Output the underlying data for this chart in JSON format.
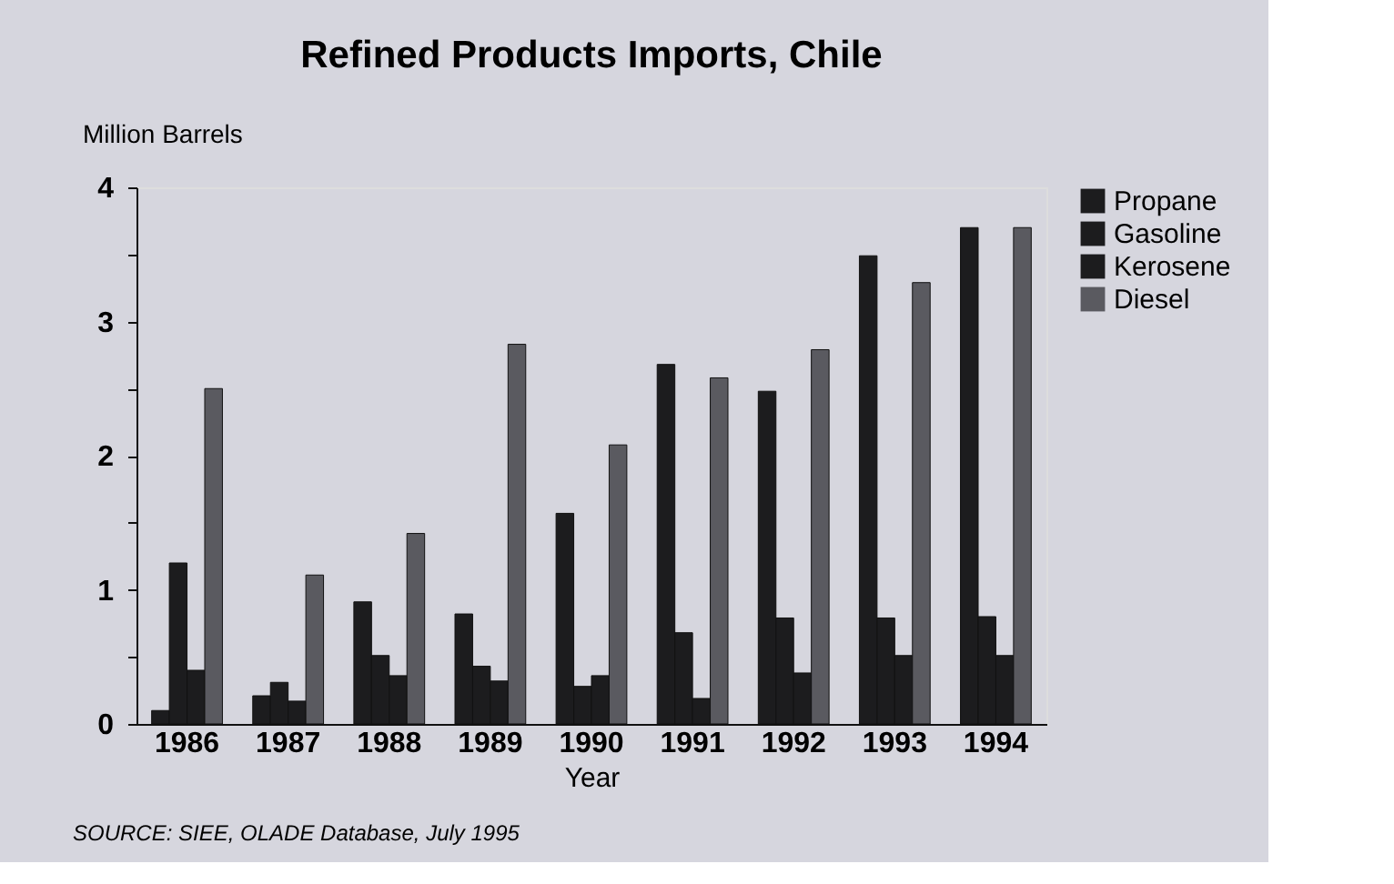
{
  "chart_data": {
    "type": "bar",
    "title": "Refined Products Imports, Chile",
    "ylabel": "Million Barrels",
    "xlabel": "Year",
    "categories": [
      "1986",
      "1987",
      "1988",
      "1989",
      "1990",
      "1991",
      "1992",
      "1993",
      "1994"
    ],
    "series": [
      {
        "name": "Propane",
        "color": "#1c1c1e",
        "values": [
          0.1,
          0.21,
          0.91,
          0.82,
          1.57,
          2.68,
          2.48,
          3.49,
          3.7
        ]
      },
      {
        "name": "Gasoline",
        "color": "#1c1c1e",
        "values": [
          1.2,
          0.31,
          0.51,
          0.43,
          0.28,
          0.68,
          0.79,
          0.79,
          0.8
        ]
      },
      {
        "name": "Kerosene",
        "color": "#1c1c1e",
        "values": [
          0.4,
          0.17,
          0.36,
          0.32,
          0.36,
          0.19,
          0.38,
          0.51,
          0.51
        ]
      },
      {
        "name": "Diesel",
        "color": "#5a5a60",
        "values": [
          2.5,
          1.11,
          1.42,
          2.83,
          2.08,
          2.58,
          2.79,
          3.29,
          3.7
        ]
      }
    ],
    "ylim": [
      0,
      4
    ],
    "yticks": [
      0,
      {
        "value": 0.5,
        "label": null
      },
      1,
      {
        "value": 1.5,
        "label": null
      },
      2,
      {
        "value": 2.5,
        "label": null
      },
      3,
      {
        "value": 3.5,
        "label": null
      },
      4
    ],
    "grid": false,
    "legend": "top right",
    "annotations": [
      "SOURCE: SIEE, OLADE Database, July 1995"
    ]
  }
}
